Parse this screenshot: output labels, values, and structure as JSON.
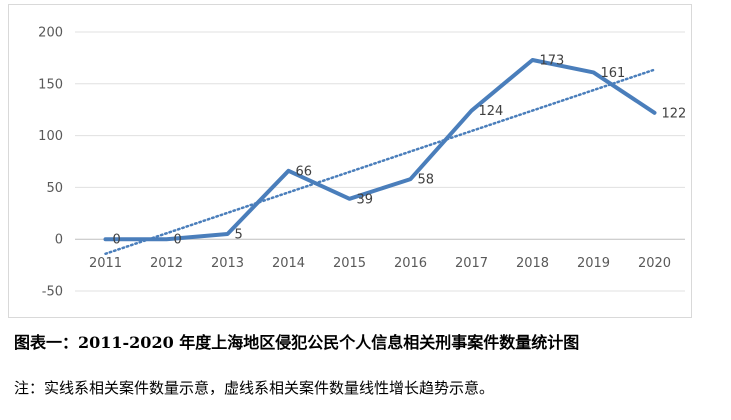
{
  "chart_data": {
    "type": "line",
    "categories": [
      "2011",
      "2012",
      "2013",
      "2014",
      "2015",
      "2016",
      "2017",
      "2018",
      "2019",
      "2020"
    ],
    "series": [
      {
        "values": [
          0,
          0,
          5,
          66,
          39,
          58,
          124,
          173,
          161,
          122
        ],
        "color": "#4a7ebb",
        "style": "solid"
      }
    ],
    "trendline": {
      "type": "linear",
      "color": "#4a7ebb",
      "style": "dotted"
    },
    "data_labels": [
      "0",
      "0",
      "5",
      "66",
      "39",
      "58",
      "124",
      "173",
      "161",
      "122"
    ],
    "y_ticks": [
      "200",
      "150",
      "100",
      "50",
      "0",
      "-50"
    ],
    "ylim": [
      -50,
      200
    ],
    "grid": "horizontal",
    "legend": "none"
  },
  "caption": "图表一：2011-2020 年度上海地区侵犯公民个人信息相关刑事案件数量统计图",
  "note": "注：实线系相关案件数量示意，虚线系相关案件数量线性增长趋势示意。"
}
